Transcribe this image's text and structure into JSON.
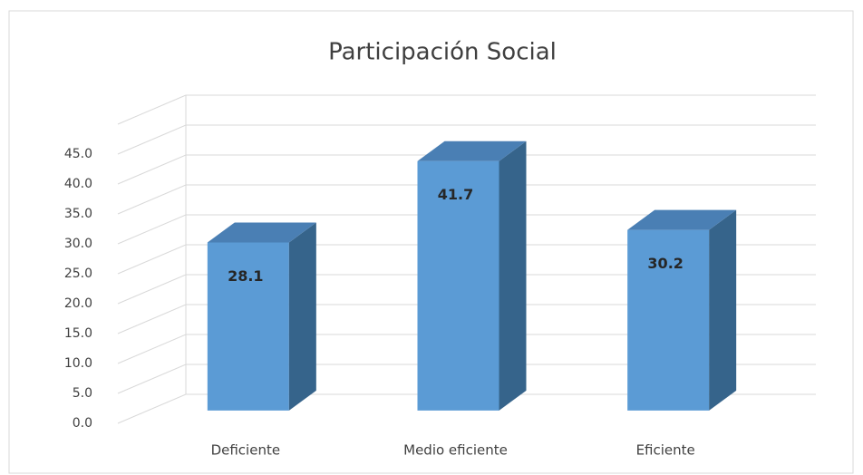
{
  "chart_data": {
    "type": "bar3d",
    "title": "Participación Social",
    "categories": [
      "Deficiente",
      "Medio eficiente",
      "Eficiente"
    ],
    "values": [
      28.1,
      41.7,
      30.2
    ],
    "color": "#5b9bd5",
    "ylim": [
      0,
      50
    ],
    "yticks": [
      {
        "value": 0,
        "label": "0.0"
      },
      {
        "value": 5,
        "label": "5.0"
      },
      {
        "value": 10,
        "label": "10.0"
      },
      {
        "value": 15,
        "label": "15.0"
      },
      {
        "value": 20,
        "label": "20.0"
      },
      {
        "value": 25,
        "label": "25.0"
      },
      {
        "value": 30,
        "label": "30.0"
      },
      {
        "value": 35,
        "label": "35.0"
      },
      {
        "value": 40,
        "label": "40.0"
      },
      {
        "value": 45,
        "label": "45.0"
      }
    ],
    "grid": true
  }
}
